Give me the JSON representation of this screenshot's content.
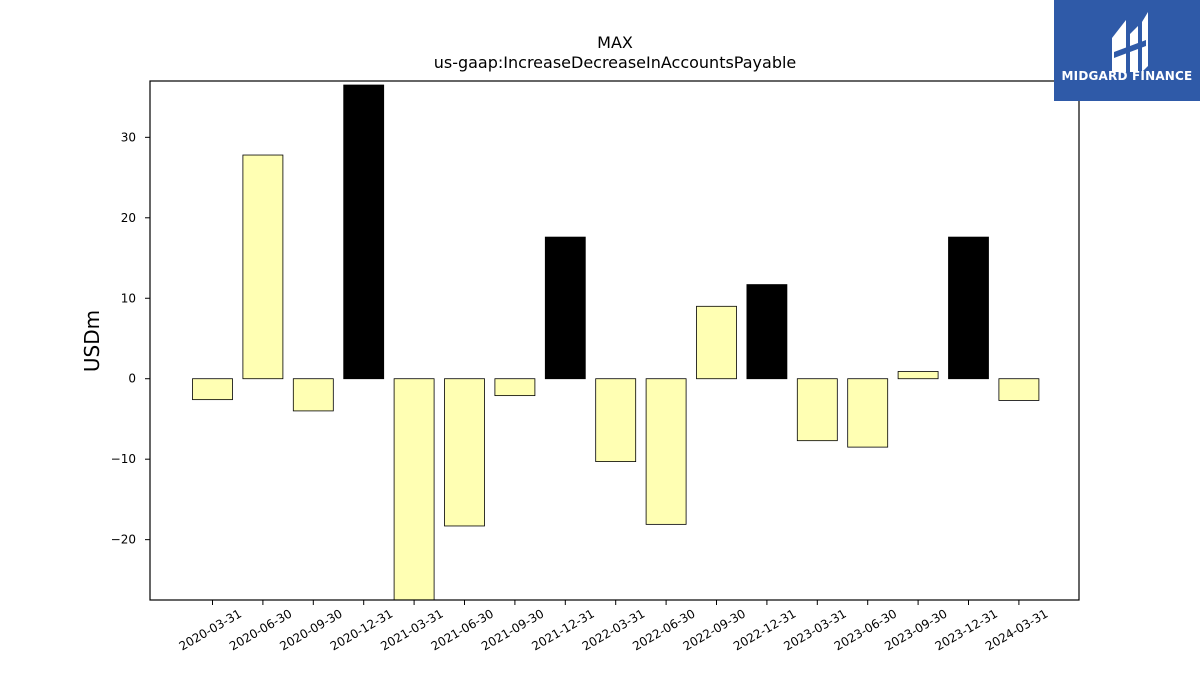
{
  "chart_data": {
    "type": "bar",
    "title": "MAX",
    "subtitle": "us-gaap:IncreaseDecreaseInAccountsPayable",
    "xlabel": "",
    "ylabel": "USDm",
    "ylim": [
      -27.5,
      37
    ],
    "yticks": [
      -20,
      -10,
      0,
      10,
      20,
      30
    ],
    "ytick_labels": [
      "−20",
      "−10",
      "0",
      "10",
      "20",
      "30"
    ],
    "grid": false,
    "categories": [
      "2020-03-31",
      "2020-06-30",
      "2020-09-30",
      "2020-12-31",
      "2021-03-31",
      "2021-06-30",
      "2021-09-30",
      "2021-12-31",
      "2022-03-31",
      "2022-06-30",
      "2022-09-30",
      "2022-12-31",
      "2023-03-31",
      "2023-06-30",
      "2023-09-30",
      "2023-12-31",
      "2024-03-31"
    ],
    "values": [
      -2.6,
      27.8,
      -4.0,
      36.5,
      -27.5,
      -18.3,
      -2.1,
      17.6,
      -10.3,
      -18.1,
      9.0,
      11.7,
      -7.7,
      -8.5,
      0.9,
      17.6,
      -2.7
    ],
    "quarter_type": [
      "q",
      "q",
      "q",
      "fy",
      "q",
      "q",
      "q",
      "fy",
      "q",
      "q",
      "q",
      "fy",
      "q",
      "q",
      "q",
      "fy",
      "q"
    ],
    "colors": {
      "q": "#ffffb3",
      "fy": "#000000",
      "edge": "#000000"
    }
  },
  "logo": {
    "text": "MIDGARD FINANCE",
    "background": "#2f5aa8"
  }
}
